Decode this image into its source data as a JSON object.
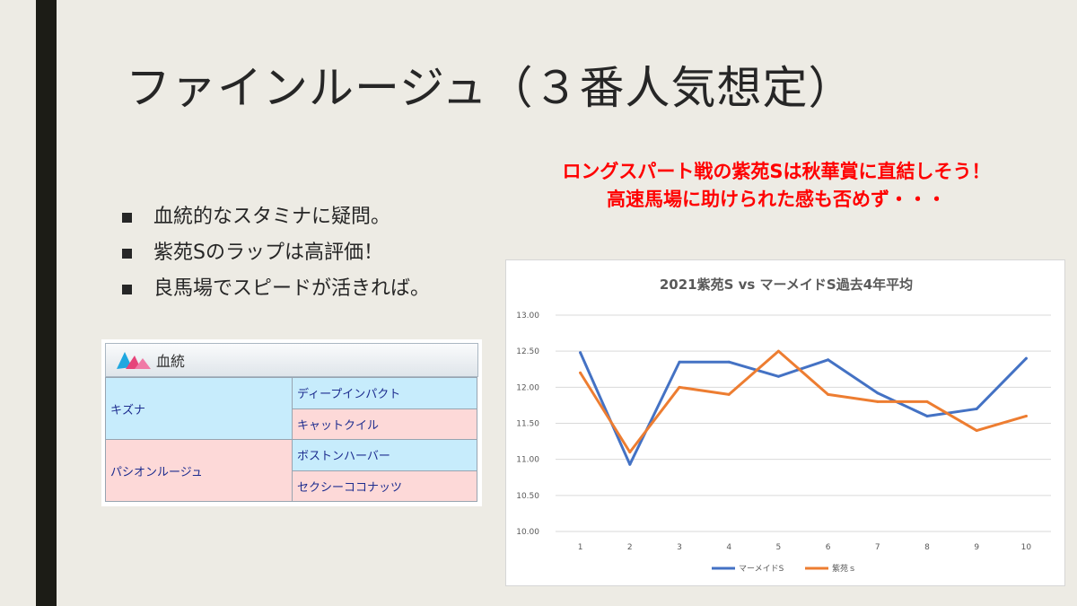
{
  "slide": {
    "title": "ファインルージュ（３番人気想定）",
    "bullets": [
      "血統的なスタミナに疑問。",
      "紫苑Sのラップは高評価！",
      "良馬場でスピードが活きれば。"
    ],
    "callout_line1": "ロングスパート戦の紫苑Sは秋華賞に直結しそう！",
    "callout_line2": "高速馬場に助けられた感も否めず・・・",
    "callout_color": "#ff0000"
  },
  "pedigree": {
    "header": "血統",
    "sire": "キズナ",
    "sire_sire": "ディープインパクト",
    "sire_dam": "キャットクイル",
    "dam": "パシオンルージュ",
    "dam_sire": "ボストンハーバー",
    "dam_dam": "セクシーココナッツ"
  },
  "chart_data": {
    "type": "line",
    "title": "2021紫苑S vs マーメイドS過去4年平均",
    "x": [
      1,
      2,
      3,
      4,
      5,
      6,
      7,
      8,
      9,
      10
    ],
    "ylim": [
      10.0,
      13.0
    ],
    "yticks": [
      "13.00",
      "12.50",
      "12.00",
      "11.50",
      "11.00",
      "10.50",
      "10.00"
    ],
    "grid": true,
    "legend_position": "bottom",
    "series": [
      {
        "name": "マーメイドS",
        "color": "#4472c4",
        "values": [
          12.48,
          10.93,
          12.35,
          12.35,
          12.15,
          12.38,
          11.92,
          11.6,
          11.7,
          12.4
        ]
      },
      {
        "name": "紫苑ｓ",
        "color": "#ed7d31",
        "values": [
          12.2,
          11.1,
          12.0,
          11.9,
          12.5,
          11.9,
          11.8,
          11.8,
          11.4,
          11.6
        ]
      }
    ]
  }
}
